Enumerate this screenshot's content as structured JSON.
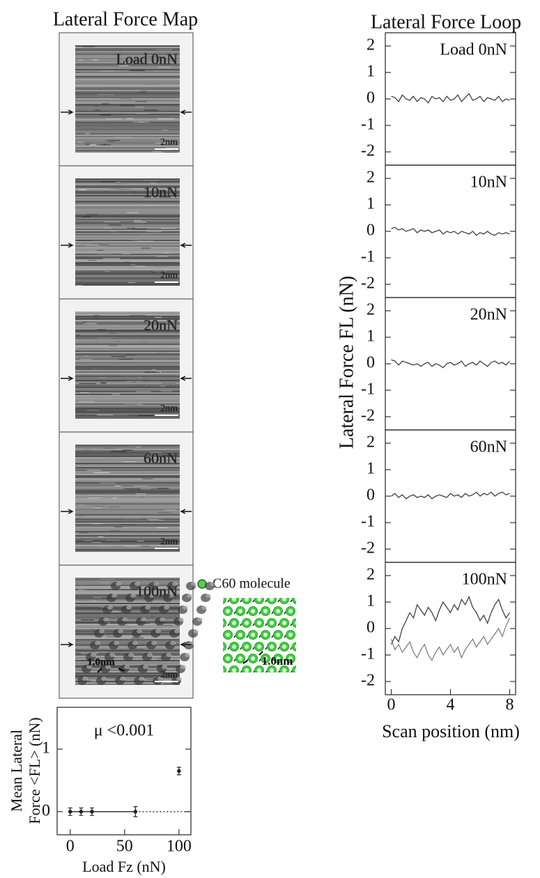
{
  "map_panel": {
    "title": "Lateral Force Map",
    "maps": [
      {
        "label": "Load 0nN",
        "scale_bar": "2nm"
      },
      {
        "label": "10nN",
        "scale_bar": "2nm"
      },
      {
        "label": "20nN",
        "scale_bar": "2nm"
      },
      {
        "label": "60nN",
        "scale_bar": "2nm"
      },
      {
        "label": "100nN",
        "scale_bar": "2nm",
        "annotation": "1.0nm"
      }
    ],
    "molecule_legend": "C60 molecule",
    "molecule_annotation": "1.0nm"
  },
  "loop_panel": {
    "title": "Lateral Force Loop",
    "ylabel": "Lateral Force FL (nN)",
    "xlabel": "Scan position (nm)"
  },
  "chart_data": [
    {
      "type": "line",
      "title": "Load 0nN",
      "x": [
        0,
        0.25,
        0.5,
        0.75,
        1,
        1.25,
        1.5,
        1.75,
        2,
        2.25,
        2.5,
        2.75,
        3,
        3.25,
        3.5,
        3.75,
        4,
        4.25,
        4.5,
        4.75,
        5,
        5.25,
        5.5,
        5.75,
        6,
        6.25,
        6.5,
        6.75,
        7,
        7.25,
        7.5,
        7.75,
        8
      ],
      "series": [
        {
          "color": "#333333",
          "values": [
            0.1,
            0.05,
            -0.1,
            0.15,
            0,
            -0.05,
            0.1,
            -0.1,
            0.05,
            0,
            -0.15,
            0.1,
            0,
            0.05,
            -0.1,
            0.1,
            -0.05,
            0,
            0.15,
            -0.1,
            0.05,
            0.2,
            -0.05,
            0,
            0.1,
            -0.1,
            0.05,
            0,
            -0.05,
            0.1,
            -0.1,
            0,
            -0.05
          ]
        }
      ],
      "xlim": [
        -0.4,
        8.4
      ],
      "ylim": [
        -2.5,
        2.5
      ],
      "yticks": [
        -2,
        -1,
        0,
        1,
        2
      ]
    },
    {
      "type": "line",
      "title": "10nN",
      "x": [
        0,
        0.25,
        0.5,
        0.75,
        1,
        1.25,
        1.5,
        1.75,
        2,
        2.25,
        2.5,
        2.75,
        3,
        3.25,
        3.5,
        3.75,
        4,
        4.25,
        4.5,
        4.75,
        5,
        5.25,
        5.5,
        5.75,
        6,
        6.25,
        6.5,
        6.75,
        7,
        7.25,
        7.5,
        7.75,
        8
      ],
      "series": [
        {
          "color": "#333333",
          "values": [
            0.1,
            0.15,
            0.05,
            0.1,
            0,
            0.05,
            0.1,
            -0.05,
            0.05,
            0,
            0.05,
            -0.05,
            0,
            0.05,
            -0.1,
            0,
            -0.05,
            0,
            -0.1,
            0,
            -0.05,
            -0.1,
            0,
            -0.15,
            -0.05,
            -0.1,
            0,
            -0.1,
            -0.15,
            -0.05,
            -0.1,
            -0.05,
            -0.1
          ]
        }
      ],
      "xlim": [
        -0.4,
        8.4
      ],
      "ylim": [
        -2.5,
        2.5
      ],
      "yticks": [
        -2,
        -1,
        0,
        1,
        2
      ]
    },
    {
      "type": "line",
      "title": "20nN",
      "x": [
        0,
        0.25,
        0.5,
        0.75,
        1,
        1.25,
        1.5,
        1.75,
        2,
        2.25,
        2.5,
        2.75,
        3,
        3.25,
        3.5,
        3.75,
        4,
        4.25,
        4.5,
        4.75,
        5,
        5.25,
        5.5,
        5.75,
        6,
        6.25,
        6.5,
        6.75,
        7,
        7.25,
        7.5,
        7.75,
        8
      ],
      "series": [
        {
          "color": "#333333",
          "values": [
            0.15,
            0.1,
            -0.05,
            0.1,
            0.05,
            0,
            -0.05,
            0,
            -0.1,
            0,
            0.05,
            -0.1,
            0,
            -0.05,
            -0.15,
            0,
            0.05,
            -0.05,
            0,
            0.1,
            -0.1,
            0,
            0.05,
            -0.05,
            0.1,
            0,
            -0.1,
            0.05,
            0.1,
            0,
            0.05,
            -0.05,
            0.1
          ]
        }
      ],
      "xlim": [
        -0.4,
        8.4
      ],
      "ylim": [
        -2.5,
        2.5
      ],
      "yticks": [
        -2,
        -1,
        0,
        1,
        2
      ]
    },
    {
      "type": "line",
      "title": "60nN",
      "x": [
        0,
        0.25,
        0.5,
        0.75,
        1,
        1.25,
        1.5,
        1.75,
        2,
        2.25,
        2.5,
        2.75,
        3,
        3.25,
        3.5,
        3.75,
        4,
        4.25,
        4.5,
        4.75,
        5,
        5.25,
        5.5,
        5.75,
        6,
        6.25,
        6.5,
        6.75,
        7,
        7.25,
        7.5,
        7.75,
        8
      ],
      "series": [
        {
          "color": "#333333",
          "values": [
            0,
            0.1,
            -0.05,
            0.05,
            -0.1,
            0,
            0.05,
            -0.05,
            0,
            -0.05,
            0.05,
            -0.1,
            0,
            0.05,
            0,
            -0.05,
            0.1,
            0,
            0.05,
            -0.05,
            0.1,
            0,
            0.05,
            0.15,
            0,
            0.1,
            0.05,
            0.15,
            0,
            0.1,
            0.15,
            0.05,
            0.1
          ]
        }
      ],
      "xlim": [
        -0.4,
        8.4
      ],
      "ylim": [
        -2.5,
        2.5
      ],
      "yticks": [
        -2,
        -1,
        0,
        1,
        2
      ]
    },
    {
      "type": "line",
      "title": "100nN",
      "x": [
        0,
        0.25,
        0.5,
        0.75,
        1,
        1.25,
        1.5,
        1.75,
        2,
        2.25,
        2.5,
        2.75,
        3,
        3.25,
        3.5,
        3.75,
        4,
        4.25,
        4.5,
        4.75,
        5,
        5.25,
        5.5,
        5.75,
        6,
        6.25,
        6.5,
        6.75,
        7,
        7.25,
        7.5,
        7.75,
        8
      ],
      "series": [
        {
          "color": "#333333",
          "values": [
            -0.6,
            -0.3,
            -0.5,
            0,
            0.3,
            0.6,
            0.4,
            0.9,
            0.7,
            0.5,
            0.8,
            0.6,
            0.3,
            0.7,
            1.0,
            0.8,
            0.6,
            0.9,
            0.7,
            1.1,
            0.9,
            1.2,
            0.8,
            0.6,
            0.3,
            0.5,
            0.2,
            0.6,
            0.9,
            1.1,
            0.7,
            0.4,
            0.6
          ]
        },
        {
          "color": "#777777",
          "values": [
            -0.4,
            -0.8,
            -0.6,
            -0.9,
            -0.7,
            -0.5,
            -0.9,
            -1.1,
            -0.8,
            -0.6,
            -1.0,
            -1.2,
            -0.9,
            -0.7,
            -1.0,
            -0.8,
            -0.6,
            -0.9,
            -0.7,
            -1.1,
            -0.8,
            -0.6,
            -0.4,
            -0.7,
            -0.5,
            -0.3,
            -0.6,
            -0.4,
            -0.2,
            0.0,
            -0.3,
            0.1,
            0.4
          ]
        }
      ],
      "xlim": [
        -0.4,
        8.4
      ],
      "ylim": [
        -2.5,
        2.5
      ],
      "yticks": [
        -2,
        -1,
        0,
        1,
        2
      ],
      "xticks": [
        0,
        4,
        8
      ]
    },
    {
      "type": "scatter",
      "annotation": "μ <0.001",
      "xlabel": "Load Fz (nN)",
      "ylabel": [
        "Mean Lateral",
        "Force <FL> (nN)"
      ],
      "x": [
        0,
        10,
        20,
        60,
        100
      ],
      "values": [
        0,
        0,
        0,
        0,
        0.65
      ],
      "errors": [
        0.06,
        0.06,
        0.06,
        0.08,
        0.06
      ],
      "fit": {
        "x": [
          0,
          60
        ],
        "values": [
          0,
          0
        ]
      },
      "extrapolation": {
        "x": [
          60,
          111
        ],
        "values": [
          0,
          0
        ]
      },
      "color": "#222222",
      "xlim": [
        -12,
        111
      ],
      "xticks": [
        0,
        50,
        100
      ],
      "ylim": [
        -0.37,
        1.67
      ],
      "yticks": [
        0,
        1
      ]
    }
  ]
}
